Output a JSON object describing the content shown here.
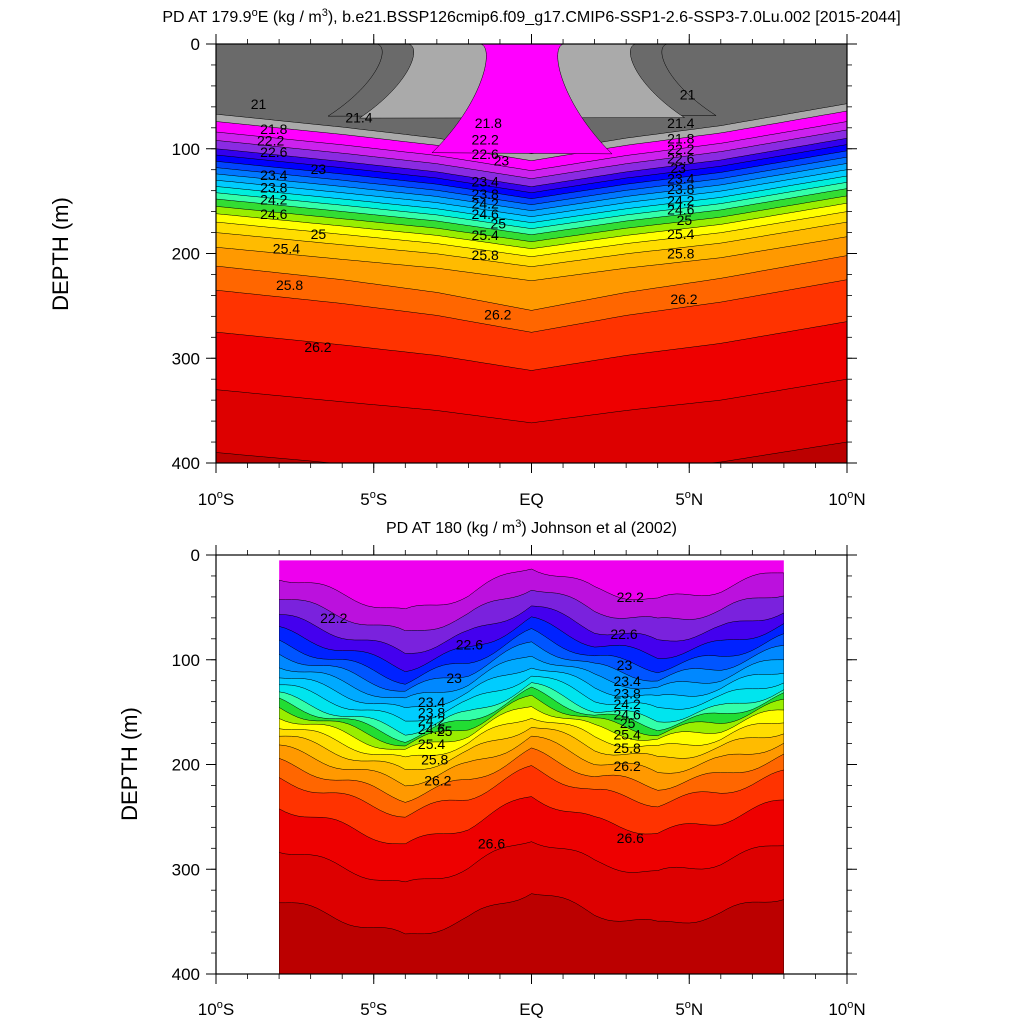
{
  "chart_data": [
    {
      "type": "contour",
      "title_prefix": "PD AT 179.9",
      "title_sup1": "o",
      "title_mid": "E (kg / m",
      "title_sup2": "3",
      "title_suffix": "), b.e21.BSSP126cmip6.f09_g17.CMIP6-SSP1-2.6-SSP3-7.0Lu.002 [2015-2044]",
      "ylabel": "DEPTH (m)",
      "xlim": [
        -10,
        10
      ],
      "ylim": [
        400,
        0
      ],
      "yticks": [
        "0",
        "100",
        "200",
        "300",
        "400"
      ],
      "xticks": [
        {
          "main": "10",
          "deg": "o",
          "hemi": "S"
        },
        {
          "main": "5",
          "deg": "o",
          "hemi": "S"
        },
        {
          "main": "EQ",
          "deg": "",
          "hemi": ""
        },
        {
          "main": "5",
          "deg": "o",
          "hemi": "N"
        },
        {
          "main": "10",
          "deg": "o",
          "hemi": "N"
        }
      ],
      "data_xrange": [
        -10,
        10
      ],
      "dome": {
        "half_width": 1.35,
        "top": 0,
        "center": -0.3
      },
      "layers": [
        {
          "offset": 0,
          "color": "#6a6a6a"
        },
        {
          "offset": 7,
          "color": "#aaaaaa"
        },
        {
          "offset": 14,
          "color": "#ff00ff"
        },
        {
          "offset": 24,
          "color": "#cc22ee"
        },
        {
          "offset": 32,
          "color": "#8a2be2"
        },
        {
          "offset": 40,
          "color": "#3300ee"
        },
        {
          "offset": 46,
          "color": "#0000ff"
        },
        {
          "offset": 52,
          "color": "#0044ff"
        },
        {
          "offset": 58,
          "color": "#0077ff"
        },
        {
          "offset": 64,
          "color": "#00aaff"
        },
        {
          "offset": 70,
          "color": "#00ccff"
        },
        {
          "offset": 76,
          "color": "#00eedd"
        },
        {
          "offset": 82,
          "color": "#33ffaa"
        },
        {
          "offset": 88,
          "color": "#33dd33"
        },
        {
          "offset": 95,
          "color": "#99ee00"
        },
        {
          "offset": 102,
          "color": "#ffff00"
        },
        {
          "offset": 110,
          "color": "#ffdd00"
        },
        {
          "offset": 120,
          "color": "#ffbb00"
        },
        {
          "offset": 134,
          "color": "#ff9900"
        },
        {
          "offset": 152,
          "color": "#ff6600"
        },
        {
          "offset": 175,
          "color": "#ff3300"
        },
        {
          "offset": 215,
          "color": "#ee0000"
        },
        {
          "offset": 270,
          "color": "#dd0000"
        },
        {
          "offset": 330,
          "color": "#bb0000"
        }
      ],
      "base_depth": [
        [
          -10,
          60
        ],
        [
          -6,
          70
        ],
        [
          -3,
          74
        ],
        [
          0,
          80
        ],
        [
          3,
          74
        ],
        [
          6,
          68
        ],
        [
          10,
          50
        ]
      ],
      "bump": [
        [
          -10,
          0
        ],
        [
          -6,
          8
        ],
        [
          -3,
          30
        ],
        [
          0,
          60
        ],
        [
          3,
          30
        ],
        [
          6,
          10
        ],
        [
          10,
          0
        ]
      ],
      "labels": [
        {
          "text": "21",
          "x": -8.9,
          "y": 62
        },
        {
          "text": "21.4",
          "x": -5.9,
          "y": 75
        },
        {
          "text": "21.8",
          "x": -8.6,
          "y": 86
        },
        {
          "text": "22.2",
          "x": -8.7,
          "y": 97
        },
        {
          "text": "22.6",
          "x": -8.6,
          "y": 108
        },
        {
          "text": "23",
          "x": -7.0,
          "y": 124
        },
        {
          "text": "23.4",
          "x": -8.6,
          "y": 130
        },
        {
          "text": "23.8",
          "x": -8.6,
          "y": 142
        },
        {
          "text": "24.2",
          "x": -8.6,
          "y": 153
        },
        {
          "text": "24.6",
          "x": -8.6,
          "y": 167
        },
        {
          "text": "25",
          "x": -7.0,
          "y": 186
        },
        {
          "text": "25.4",
          "x": -8.2,
          "y": 200
        },
        {
          "text": "25.8",
          "x": -8.1,
          "y": 235
        },
        {
          "text": "26.2",
          "x": -7.2,
          "y": 294
        },
        {
          "text": "21.8",
          "x": -1.8,
          "y": 80
        },
        {
          "text": "22.2",
          "x": -1.9,
          "y": 96
        },
        {
          "text": "22.6",
          "x": -1.9,
          "y": 110
        },
        {
          "text": "23",
          "x": -1.2,
          "y": 116
        },
        {
          "text": "23.4",
          "x": -1.9,
          "y": 136
        },
        {
          "text": "23.8",
          "x": -1.9,
          "y": 148
        },
        {
          "text": "24.2",
          "x": -1.9,
          "y": 157
        },
        {
          "text": "24.6",
          "x": -1.9,
          "y": 167
        },
        {
          "text": "25",
          "x": -1.3,
          "y": 176
        },
        {
          "text": "25.4",
          "x": -1.9,
          "y": 187
        },
        {
          "text": "25.8",
          "x": -1.9,
          "y": 206
        },
        {
          "text": "26.2",
          "x": -1.5,
          "y": 263
        },
        {
          "text": "21",
          "x": 4.7,
          "y": 53
        },
        {
          "text": "21.4",
          "x": 4.3,
          "y": 80
        },
        {
          "text": "21.8",
          "x": 4.3,
          "y": 95
        },
        {
          "text": "22.2",
          "x": 4.3,
          "y": 105
        },
        {
          "text": "22.6",
          "x": 4.3,
          "y": 114
        },
        {
          "text": "23",
          "x": 4.4,
          "y": 123
        },
        {
          "text": "23.4",
          "x": 4.3,
          "y": 133
        },
        {
          "text": "23.8",
          "x": 4.3,
          "y": 143
        },
        {
          "text": "24.2",
          "x": 4.3,
          "y": 154
        },
        {
          "text": "24.6",
          "x": 4.3,
          "y": 163
        },
        {
          "text": "25",
          "x": 4.6,
          "y": 173
        },
        {
          "text": "25.4",
          "x": 4.3,
          "y": 186
        },
        {
          "text": "25.8",
          "x": 4.3,
          "y": 205
        },
        {
          "text": "26.2",
          "x": 4.4,
          "y": 248
        }
      ]
    },
    {
      "type": "contour",
      "title_prefix": "PD AT 180 (kg / m",
      "title_sup1": "",
      "title_mid": "",
      "title_sup2": "3",
      "title_suffix": ") Johnson et al (2002)",
      "ylabel": "DEPTH (m)",
      "xlim": [
        -10,
        10
      ],
      "ylim": [
        400,
        0
      ],
      "yticks": [
        "0",
        "100",
        "200",
        "300",
        "400"
      ],
      "xticks": [
        {
          "main": "10",
          "deg": "o",
          "hemi": "S"
        },
        {
          "main": "5",
          "deg": "o",
          "hemi": "S"
        },
        {
          "main": "EQ",
          "deg": "",
          "hemi": ""
        },
        {
          "main": "5",
          "deg": "o",
          "hemi": "N"
        },
        {
          "main": "10",
          "deg": "o",
          "hemi": "N"
        }
      ],
      "data_xrange": [
        -8,
        8
      ],
      "data_top": 5,
      "layers": [
        {
          "offset": -80,
          "color": "#ee00ee"
        },
        {
          "offset": -60,
          "color": "#bb11dd"
        },
        {
          "offset": -40,
          "color": "#7a22dd"
        },
        {
          "offset": -22,
          "color": "#4400ee"
        },
        {
          "offset": -8,
          "color": "#0022ff"
        },
        {
          "offset": 4,
          "color": "#0055ff"
        },
        {
          "offset": 14,
          "color": "#0088ff"
        },
        {
          "offset": 24,
          "color": "#00aaff"
        },
        {
          "offset": 34,
          "color": "#00ccff"
        },
        {
          "offset": 44,
          "color": "#00e5ee"
        },
        {
          "offset": 54,
          "color": "#33ffaa"
        },
        {
          "offset": 60,
          "color": "#22dd33"
        },
        {
          "offset": 66,
          "color": "#99ee00"
        },
        {
          "offset": 73,
          "color": "#ffff00"
        },
        {
          "offset": 82,
          "color": "#ffdd00"
        },
        {
          "offset": 92,
          "color": "#ffbb00"
        },
        {
          "offset": 104,
          "color": "#ff9900"
        },
        {
          "offset": 118,
          "color": "#ff6600"
        },
        {
          "offset": 134,
          "color": "#ff3300"
        },
        {
          "offset": 160,
          "color": "#ee0000"
        },
        {
          "offset": 200,
          "color": "#dd0000"
        },
        {
          "offset": 250,
          "color": "#bb0000"
        }
      ],
      "base_depth": [
        [
          -8,
          80
        ],
        [
          -6,
          95
        ],
        [
          -4,
          110
        ],
        [
          -2,
          95
        ],
        [
          0,
          70
        ],
        [
          2,
          90
        ],
        [
          4,
          100
        ],
        [
          6,
          90
        ],
        [
          8,
          75
        ]
      ],
      "bump": [
        [
          -8,
          0
        ],
        [
          -6,
          10
        ],
        [
          -4,
          20
        ],
        [
          -2,
          10
        ],
        [
          0,
          0
        ],
        [
          2,
          10
        ],
        [
          4,
          15
        ],
        [
          6,
          10
        ],
        [
          8,
          0
        ]
      ],
      "labels": [
        {
          "text": "22.2",
          "x": -6.7,
          "y": 65
        },
        {
          "text": "22.6",
          "x": -2.4,
          "y": 90
        },
        {
          "text": "23",
          "x": -2.7,
          "y": 122
        },
        {
          "text": "23.4",
          "x": -3.6,
          "y": 145
        },
        {
          "text": "23.8",
          "x": -3.6,
          "y": 155
        },
        {
          "text": "24.2",
          "x": -3.6,
          "y": 163
        },
        {
          "text": "24.6",
          "x": -3.6,
          "y": 171
        },
        {
          "text": "25",
          "x": -3.0,
          "y": 173
        },
        {
          "text": "25.4",
          "x": -3.6,
          "y": 185
        },
        {
          "text": "25.8",
          "x": -3.5,
          "y": 200
        },
        {
          "text": "26.2",
          "x": -3.4,
          "y": 220
        },
        {
          "text": "26.6",
          "x": -1.7,
          "y": 280
        },
        {
          "text": "22.2",
          "x": 2.7,
          "y": 45
        },
        {
          "text": "22.6",
          "x": 2.5,
          "y": 80
        },
        {
          "text": "23",
          "x": 2.7,
          "y": 110
        },
        {
          "text": "23.4",
          "x": 2.6,
          "y": 125
        },
        {
          "text": "23.8",
          "x": 2.6,
          "y": 137
        },
        {
          "text": "24.2",
          "x": 2.6,
          "y": 147
        },
        {
          "text": "24.6",
          "x": 2.6,
          "y": 157
        },
        {
          "text": "25",
          "x": 2.8,
          "y": 165
        },
        {
          "text": "25.4",
          "x": 2.6,
          "y": 176
        },
        {
          "text": "25.8",
          "x": 2.6,
          "y": 189
        },
        {
          "text": "26.2",
          "x": 2.6,
          "y": 206
        },
        {
          "text": "26.6",
          "x": 2.7,
          "y": 275
        }
      ]
    }
  ]
}
